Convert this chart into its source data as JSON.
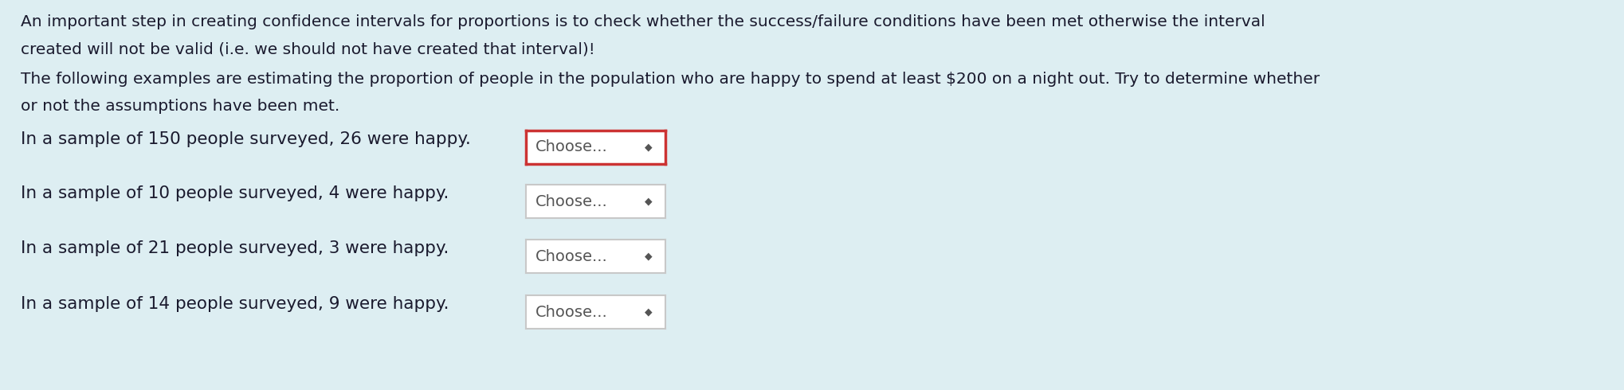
{
  "background_color": "#ddeef2",
  "text_color": "#1a1a2e",
  "para1_line1": "An important step in creating confidence intervals for proportions is to check whether the success/failure conditions have been met otherwise the interval",
  "para1_line2": "created will not be valid (i.e. we should not have created that interval)!",
  "para2_line1": "The following examples are estimating the proportion of people in the population who are happy to spend at least $200 on a night out. Try to determine whether",
  "para2_line2": "or not the assumptions have been met.",
  "questions": [
    "In a sample of 150 people surveyed, 26 were happy.",
    "In a sample of 10 people surveyed, 4 were happy.",
    "In a sample of 21 people surveyed, 3 were happy.",
    "In a sample of 14 people surveyed, 9 were happy."
  ],
  "dropdown_label": "Choose...",
  "font_size_para": 14.5,
  "font_size_question": 15.5,
  "font_size_dropdown": 14.0,
  "first_dropdown_border_color": "#cc3333",
  "other_dropdown_border_color": "#c8c8c8",
  "dropdown_bg": "#ffffff",
  "arrow_color": "#555555",
  "arrow_symbol": "◆"
}
